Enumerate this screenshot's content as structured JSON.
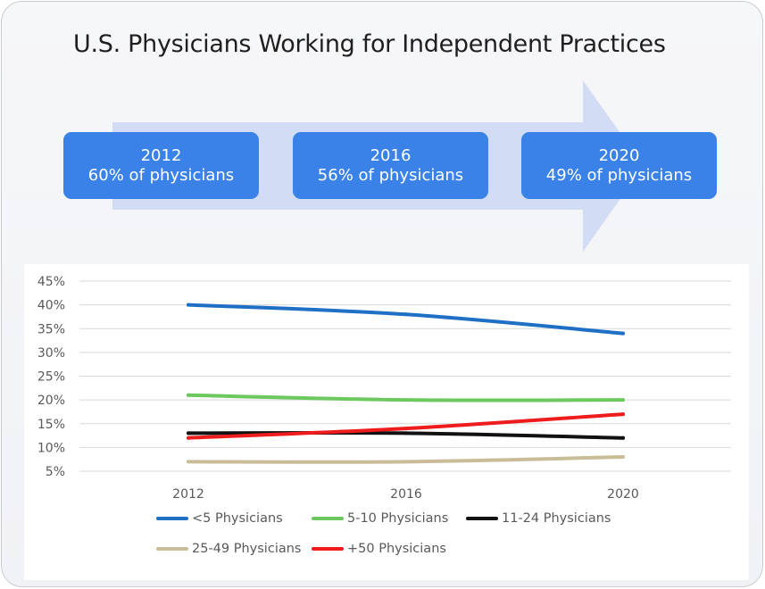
{
  "title": "U.S. Physicians Working for Independent Practices",
  "timeline": [
    {
      "year": "2012",
      "text": "60% of physicians"
    },
    {
      "year": "2016",
      "text": "56% of physicians"
    },
    {
      "year": "2020",
      "text": "49% of physicians"
    }
  ],
  "colors": {
    "arrow": "#d3dcf5",
    "box": "#3a82e8",
    "grid": "#d9d9d9"
  },
  "chart_data": {
    "type": "line",
    "x": [
      "2012",
      "2016",
      "2020"
    ],
    "ylim": [
      5,
      45
    ],
    "yticks": [
      "5%",
      "10%",
      "15%",
      "20%",
      "25%",
      "30%",
      "35%",
      "40%",
      "45%"
    ],
    "grid": true,
    "legend_position": "bottom",
    "series": [
      {
        "name": "<5 Physicians",
        "color": "#1f6fc5",
        "values": [
          40,
          38,
          34
        ]
      },
      {
        "name": "5-10 Physicians",
        "color": "#6cc95e",
        "values": [
          21,
          20,
          20
        ]
      },
      {
        "name": "11-24 Physicians",
        "color": "#111111",
        "values": [
          13,
          13,
          12
        ]
      },
      {
        "name": "25-49 Physicians",
        "color": "#c9bd98",
        "values": [
          7,
          7,
          8
        ]
      },
      {
        "name": "+50 Physicians",
        "color": "#ee1c1c",
        "values": [
          12,
          14,
          17
        ]
      }
    ]
  }
}
